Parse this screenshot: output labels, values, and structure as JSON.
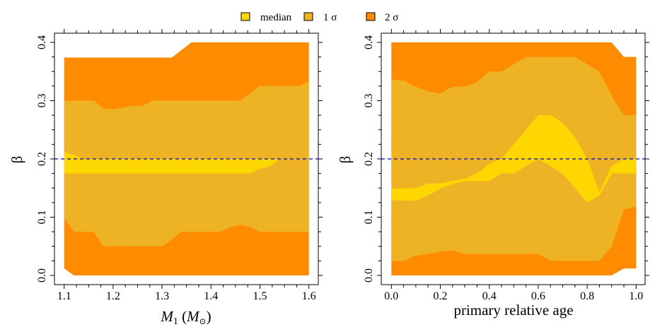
{
  "legend": {
    "items": [
      {
        "label": "median",
        "color": "#FFD700"
      },
      {
        "label": "1 σ",
        "color": "#EDB324"
      },
      {
        "label": "2 σ",
        "color": "#FF8C00"
      }
    ]
  },
  "colors": {
    "median": "#FFD700",
    "one_sigma": "#EDB324",
    "two_sigma": "#FF8C00",
    "reference_line": "#0000CD"
  },
  "chart_data": [
    {
      "type": "area",
      "title": "",
      "xlabel": "M_1 (M_⊙)",
      "xlabel_parts": {
        "main": "M",
        "sub": "1",
        "paren_main": "M",
        "paren_sub": "⊙"
      },
      "ylabel": "β",
      "xlim": [
        1.08,
        1.62
      ],
      "ylim": [
        -0.015,
        0.415
      ],
      "xticks": [
        1.1,
        1.2,
        1.3,
        1.4,
        1.5,
        1.6
      ],
      "xtick_labels": [
        "1.1",
        "1.2",
        "1.3",
        "1.4",
        "1.5",
        "1.6"
      ],
      "yticks": [
        0.0,
        0.1,
        0.2,
        0.3,
        0.4
      ],
      "ytick_labels": [
        "0.0",
        "0.1",
        "0.2",
        "0.3",
        "0.4"
      ],
      "reference_line": {
        "y": 0.2,
        "style": "dashed"
      },
      "grid": false,
      "series": [
        {
          "name": "2 σ upper",
          "x": [
            1.1,
            1.32,
            1.36,
            1.6
          ],
          "y": [
            0.374,
            0.374,
            0.4,
            0.4
          ]
        },
        {
          "name": "1 σ upper",
          "x": [
            1.1,
            1.16,
            1.18,
            1.2,
            1.22,
            1.24,
            1.26,
            1.28,
            1.46,
            1.5,
            1.58,
            1.6
          ],
          "y": [
            0.3,
            0.3,
            0.287,
            0.285,
            0.288,
            0.291,
            0.291,
            0.3,
            0.3,
            0.325,
            0.325,
            0.333
          ]
        },
        {
          "name": "median upper",
          "x": [
            1.1,
            1.12,
            1.14,
            1.54,
            1.6
          ],
          "y": [
            0.212,
            0.207,
            0.2,
            0.2,
            0.2
          ]
        },
        {
          "name": "median lower",
          "x": [
            1.1,
            1.48,
            1.5,
            1.52,
            1.54,
            1.6
          ],
          "y": [
            0.175,
            0.175,
            0.183,
            0.187,
            0.2,
            0.2
          ]
        },
        {
          "name": "1 σ lower",
          "x": [
            1.1,
            1.12,
            1.16,
            1.18,
            1.3,
            1.34,
            1.42,
            1.44,
            1.46,
            1.48,
            1.5,
            1.6
          ],
          "y": [
            0.098,
            0.075,
            0.075,
            0.05,
            0.05,
            0.075,
            0.075,
            0.083,
            0.087,
            0.083,
            0.075,
            0.075
          ]
        },
        {
          "name": "2 σ lower",
          "x": [
            1.1,
            1.12,
            1.6
          ],
          "y": [
            0.012,
            0.0,
            0.0
          ]
        }
      ]
    },
    {
      "type": "area",
      "title": "",
      "xlabel": "primary relative age",
      "ylabel": "β",
      "xlim": [
        -0.04,
        1.04
      ],
      "ylim": [
        -0.015,
        0.415
      ],
      "xticks": [
        0.0,
        0.2,
        0.4,
        0.6,
        0.8,
        1.0
      ],
      "xtick_labels": [
        "0.0",
        "0.2",
        "0.4",
        "0.6",
        "0.8",
        "1.0"
      ],
      "yticks": [
        0.0,
        0.1,
        0.2,
        0.3,
        0.4
      ],
      "ytick_labels": [
        "0.0",
        "0.1",
        "0.2",
        "0.3",
        "0.4"
      ],
      "reference_line": {
        "y": 0.2,
        "style": "dashed"
      },
      "grid": false,
      "series": [
        {
          "name": "2 σ upper",
          "x": [
            0.0,
            0.9,
            0.95,
            1.0
          ],
          "y": [
            0.4,
            0.4,
            0.375,
            0.375
          ]
        },
        {
          "name": "1 σ upper",
          "x": [
            0.0,
            0.05,
            0.1,
            0.15,
            0.2,
            0.25,
            0.3,
            0.35,
            0.4,
            0.45,
            0.55,
            0.75,
            0.85,
            0.9,
            0.95,
            1.0
          ],
          "y": [
            0.336,
            0.334,
            0.324,
            0.316,
            0.312,
            0.324,
            0.324,
            0.332,
            0.35,
            0.35,
            0.375,
            0.375,
            0.35,
            0.308,
            0.275,
            0.275
          ]
        },
        {
          "name": "median upper",
          "x": [
            0.0,
            0.1,
            0.15,
            0.2,
            0.25,
            0.3,
            0.35,
            0.4,
            0.45,
            0.6,
            0.65,
            0.7,
            0.75,
            0.8,
            0.85,
            0.9,
            0.95,
            1.0
          ],
          "y": [
            0.149,
            0.15,
            0.158,
            0.158,
            0.162,
            0.166,
            0.175,
            0.192,
            0.2,
            0.275,
            0.275,
            0.262,
            0.237,
            0.2,
            0.143,
            0.188,
            0.199,
            0.2
          ]
        },
        {
          "name": "median lower",
          "x": [
            0.0,
            0.05,
            0.1,
            0.15,
            0.2,
            0.25,
            0.3,
            0.4,
            0.45,
            0.5,
            0.6,
            0.7,
            0.8,
            0.85,
            0.9,
            1.0
          ],
          "y": [
            0.129,
            0.129,
            0.128,
            0.137,
            0.149,
            0.157,
            0.162,
            0.162,
            0.175,
            0.175,
            0.2,
            0.175,
            0.125,
            0.137,
            0.175,
            0.175
          ]
        },
        {
          "name": "1 σ lower",
          "x": [
            0.0,
            0.05,
            0.1,
            0.15,
            0.2,
            0.25,
            0.3,
            0.6,
            0.65,
            0.85,
            0.9,
            0.95,
            1.0
          ],
          "y": [
            0.025,
            0.025,
            0.034,
            0.037,
            0.041,
            0.043,
            0.037,
            0.037,
            0.025,
            0.025,
            0.05,
            0.113,
            0.118
          ]
        },
        {
          "name": "2 σ lower",
          "x": [
            0.0,
            0.9,
            0.95,
            1.0
          ],
          "y": [
            0.0,
            0.0,
            0.012,
            0.012
          ]
        }
      ]
    }
  ]
}
